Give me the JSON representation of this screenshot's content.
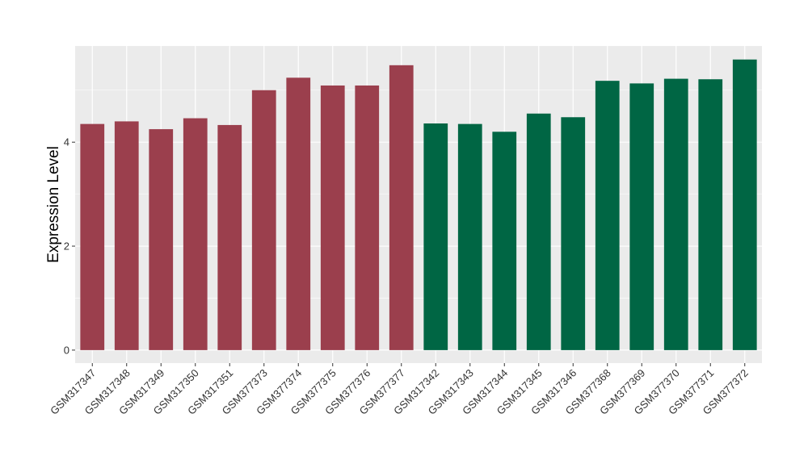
{
  "chart_data": {
    "type": "bar",
    "title": "",
    "xlabel": "",
    "ylabel": "Expression Level",
    "ylim": [
      -0.25,
      5.85
    ],
    "yticks": [
      0,
      2,
      4
    ],
    "grid": true,
    "legend": "none",
    "categories": [
      "GSM317347",
      "GSM317348",
      "GSM317349",
      "GSM317350",
      "GSM317351",
      "GSM377373",
      "GSM377374",
      "GSM377375",
      "GSM377376",
      "GSM377377",
      "GSM317342",
      "GSM317343",
      "GSM317344",
      "GSM317345",
      "GSM317346",
      "GSM377368",
      "GSM377369",
      "GSM377370",
      "GSM377371",
      "GSM377372"
    ],
    "values": [
      4.35,
      4.4,
      4.25,
      4.46,
      4.33,
      5.0,
      5.24,
      5.09,
      5.09,
      5.48,
      4.36,
      4.35,
      4.2,
      4.55,
      4.48,
      5.18,
      5.13,
      5.22,
      5.21,
      5.59
    ],
    "bar_colors": [
      "#9b3f4d",
      "#9b3f4d",
      "#9b3f4d",
      "#9b3f4d",
      "#9b3f4d",
      "#9b3f4d",
      "#9b3f4d",
      "#9b3f4d",
      "#9b3f4d",
      "#9b3f4d",
      "#006644",
      "#006644",
      "#006644",
      "#006644",
      "#006644",
      "#006644",
      "#006644",
      "#006644",
      "#006644",
      "#006644"
    ],
    "panel_color": "#ebebeb",
    "grid_color": "#ffffff"
  }
}
